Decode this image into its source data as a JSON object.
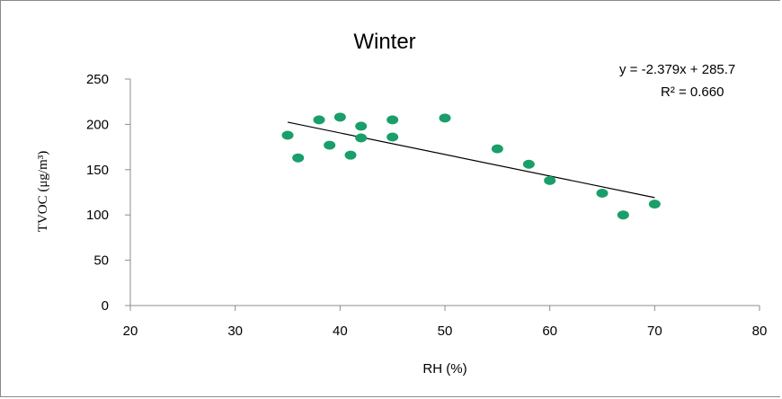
{
  "chart_data": {
    "type": "scatter",
    "title": "Winter",
    "xlabel": "RH (%)",
    "ylabel": "TVOC (μg/m³)",
    "xlim": [
      20,
      80
    ],
    "ylim": [
      0,
      250
    ],
    "x_ticks": [
      "20",
      "30",
      "40",
      "50",
      "60",
      "70",
      "80"
    ],
    "y_ticks": [
      "0",
      "50",
      "100",
      "150",
      "200",
      "250"
    ],
    "grid": false,
    "legend": "none",
    "marker_color": "#1a9e6a",
    "trendline_color": "#000000",
    "points": [
      {
        "x": 35,
        "y": 188
      },
      {
        "x": 36,
        "y": 163
      },
      {
        "x": 38,
        "y": 205
      },
      {
        "x": 39,
        "y": 177
      },
      {
        "x": 40,
        "y": 208
      },
      {
        "x": 41,
        "y": 166
      },
      {
        "x": 42,
        "y": 198
      },
      {
        "x": 42,
        "y": 185
      },
      {
        "x": 45,
        "y": 205
      },
      {
        "x": 45,
        "y": 186
      },
      {
        "x": 50,
        "y": 207
      },
      {
        "x": 55,
        "y": 173
      },
      {
        "x": 58,
        "y": 156
      },
      {
        "x": 60,
        "y": 138
      },
      {
        "x": 65,
        "y": 124
      },
      {
        "x": 67,
        "y": 100
      },
      {
        "x": 70,
        "y": 112
      }
    ],
    "trendline": {
      "x_range": [
        35,
        70
      ],
      "slope": -2.379,
      "intercept": 285.7,
      "equation_label": "y = -2.379x + 285.7",
      "r2_label": "R² = 0.660"
    }
  }
}
